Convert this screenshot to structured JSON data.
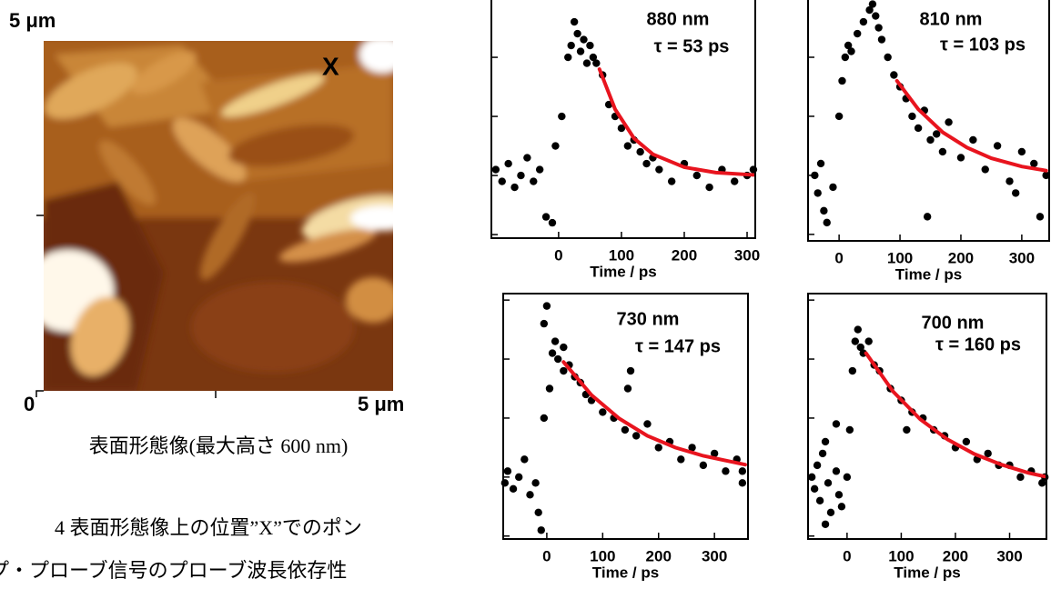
{
  "afm_image": {
    "y_label": "5 μm",
    "marker": "X",
    "x_origin": "0",
    "x_label": "5 μm",
    "caption": "表面形態像(最大高さ 600 nm)"
  },
  "figure_caption": [
    "4 表面形態像上の位置”X”でのポン",
    "プ・プローブ信号のプローブ波長依存性"
  ],
  "chart_data": [
    {
      "type": "scatter",
      "annotations": [
        "880 nm",
        "τ = 53 ps"
      ],
      "x_label": "Time / ps",
      "xlim": [
        -107,
        313
      ],
      "xticks": [
        0,
        100,
        200,
        300
      ],
      "ylim": [
        -0.06,
        3.97
      ],
      "yticks": [
        0,
        1,
        2,
        3
      ],
      "series": [
        {
          "type": "scatter",
          "color": "#000000",
          "x": [
            -100,
            -90,
            -80,
            -70,
            -60,
            -50,
            -40,
            -30,
            -20,
            -10,
            -5,
            5,
            15,
            20,
            25,
            30,
            35,
            40,
            45,
            50,
            55,
            60,
            70,
            80,
            90,
            100,
            110,
            120,
            130,
            140,
            150,
            160,
            180,
            200,
            220,
            240,
            260,
            280,
            300,
            310
          ],
          "values": [
            1.1,
            0.9,
            1.2,
            0.8,
            1.0,
            1.3,
            0.9,
            1.1,
            0.3,
            0.2,
            1.5,
            2.0,
            3.0,
            3.2,
            3.6,
            3.4,
            3.1,
            3.3,
            2.9,
            3.2,
            3.0,
            2.9,
            2.7,
            2.2,
            2.0,
            1.8,
            1.5,
            1.6,
            1.4,
            1.2,
            1.3,
            1.1,
            0.9,
            1.2,
            1.0,
            0.8,
            1.1,
            0.9,
            1.0,
            1.1
          ]
        },
        {
          "type": "line",
          "color": "#e8141e",
          "x": [
            65,
            90,
            120,
            150,
            200,
            250,
            310
          ],
          "values": [
            2.8,
            2.12,
            1.63,
            1.36,
            1.14,
            1.05,
            1.01
          ]
        }
      ]
    },
    {
      "type": "scatter",
      "annotations": [
        "810 nm",
        "τ = 103 ps"
      ],
      "x_label": "Time / ps",
      "xlim": [
        -51,
        345
      ],
      "xticks": [
        0,
        100,
        200,
        300
      ],
      "ylim": [
        -0.11,
        3.97
      ],
      "yticks": [
        0,
        1,
        2,
        3
      ],
      "series": [
        {
          "type": "scatter",
          "color": "#000000",
          "x": [
            -40,
            -35,
            -30,
            -25,
            -20,
            -10,
            0,
            5,
            10,
            15,
            20,
            30,
            40,
            50,
            55,
            60,
            65,
            70,
            80,
            90,
            100,
            110,
            120,
            130,
            140,
            150,
            160,
            170,
            180,
            200,
            220,
            240,
            260,
            280,
            300,
            320,
            340,
            145,
            290,
            330
          ],
          "values": [
            1.0,
            0.7,
            1.2,
            0.4,
            0.2,
            0.8,
            2.0,
            2.6,
            3.0,
            3.2,
            3.1,
            3.4,
            3.6,
            3.8,
            3.9,
            3.7,
            3.5,
            3.3,
            3.0,
            2.7,
            2.5,
            2.3,
            2.0,
            1.8,
            2.1,
            1.6,
            1.7,
            1.4,
            1.9,
            1.3,
            1.6,
            1.1,
            1.5,
            0.9,
            1.4,
            1.2,
            1.0,
            0.3,
            0.7,
            0.3
          ]
        },
        {
          "type": "line",
          "color": "#e8141e",
          "x": [
            95,
            130,
            170,
            210,
            250,
            300,
            340
          ],
          "values": [
            2.6,
            2.12,
            1.73,
            1.47,
            1.29,
            1.15,
            1.08
          ]
        }
      ]
    },
    {
      "type": "scatter",
      "annotations": [
        "730 nm",
        "τ = 147 ps"
      ],
      "x_label": "Time / ps",
      "xlim": [
        -78,
        360
      ],
      "xticks": [
        0,
        100,
        200,
        300
      ],
      "ylim": [
        -0.05,
        4.11
      ],
      "yticks": [
        0,
        1,
        2,
        3,
        4
      ],
      "series": [
        {
          "type": "scatter",
          "color": "#000000",
          "x": [
            -75,
            -70,
            -60,
            -50,
            -40,
            -30,
            -20,
            -15,
            -10,
            -5,
            0,
            5,
            10,
            15,
            20,
            30,
            40,
            50,
            60,
            70,
            80,
            100,
            120,
            140,
            150,
            160,
            180,
            200,
            220,
            240,
            260,
            280,
            300,
            320,
            340,
            350,
            -5,
            145,
            30,
            350
          ],
          "values": [
            0.9,
            1.1,
            0.8,
            1.0,
            1.3,
            0.7,
            0.9,
            0.4,
            0.1,
            2.0,
            3.9,
            2.5,
            3.1,
            3.3,
            3.0,
            3.2,
            2.9,
            2.7,
            2.6,
            2.4,
            2.3,
            2.1,
            2.0,
            1.8,
            2.8,
            1.7,
            1.9,
            1.5,
            1.6,
            1.3,
            1.5,
            1.2,
            1.4,
            1.1,
            1.3,
            0.9,
            3.6,
            2.5,
            2.8,
            1.1
          ]
        },
        {
          "type": "line",
          "color": "#e8141e",
          "x": [
            30,
            80,
            130,
            180,
            230,
            280,
            330,
            355
          ],
          "values": [
            2.95,
            2.39,
            1.99,
            1.7,
            1.5,
            1.36,
            1.26,
            1.21
          ]
        }
      ]
    },
    {
      "type": "scatter",
      "annotations": [
        "700 nm",
        "τ = 160 ps"
      ],
      "x_label": "Time / ps",
      "xlim": [
        -72,
        368
      ],
      "xticks": [
        0,
        100,
        200,
        300
      ],
      "ylim": [
        -0.05,
        4.11
      ],
      "yticks": [
        0,
        1,
        2,
        3,
        4
      ],
      "series": [
        {
          "type": "scatter",
          "color": "#000000",
          "x": [
            -65,
            -60,
            -55,
            -50,
            -45,
            -40,
            -35,
            -30,
            -20,
            -15,
            -10,
            0,
            5,
            10,
            15,
            20,
            25,
            30,
            40,
            50,
            60,
            80,
            100,
            120,
            140,
            160,
            180,
            200,
            220,
            240,
            260,
            280,
            300,
            320,
            340,
            360,
            -40,
            -20,
            110,
            365
          ],
          "values": [
            1.0,
            0.8,
            1.2,
            0.6,
            1.4,
            0.2,
            0.9,
            0.4,
            1.1,
            0.7,
            0.5,
            1.0,
            1.8,
            2.8,
            3.3,
            3.5,
            3.2,
            3.1,
            3.3,
            2.9,
            2.8,
            2.5,
            2.3,
            2.1,
            2.0,
            1.8,
            1.7,
            1.5,
            1.6,
            1.3,
            1.4,
            1.2,
            1.2,
            1.0,
            1.1,
            0.9,
            1.6,
            1.9,
            1.8,
            1.0
          ]
        },
        {
          "type": "line",
          "color": "#e8141e",
          "x": [
            35,
            85,
            135,
            185,
            235,
            285,
            335,
            365
          ],
          "values": [
            3.1,
            2.45,
            1.98,
            1.64,
            1.39,
            1.21,
            1.07,
            1.01
          ]
        }
      ]
    }
  ]
}
